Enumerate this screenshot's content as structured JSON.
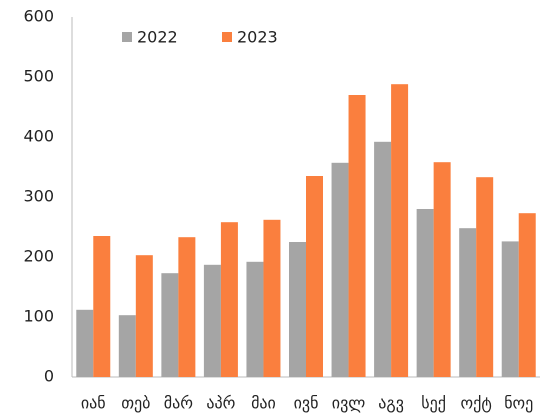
{
  "chart_data": {
    "type": "bar",
    "categories": [
      "იან",
      "თებ",
      "მარ",
      "აპრ",
      "მაი",
      "ივნ",
      "ივლ",
      "აგვ",
      "სექ",
      "ოქტ",
      "ნოე"
    ],
    "series": [
      {
        "name": "2022",
        "color": "#a5a5a5",
        "values": [
          112,
          103,
          173,
          187,
          192,
          225,
          357,
          392,
          280,
          248,
          226
        ]
      },
      {
        "name": "2023",
        "color": "#fa7f3e",
        "values": [
          235,
          203,
          233,
          258,
          262,
          335,
          470,
          488,
          358,
          333,
          273
        ]
      }
    ],
    "ylim": [
      0,
      600
    ],
    "yticks": [
      0,
      100,
      200,
      300,
      400,
      500,
      600
    ],
    "grid": false,
    "legend": "upper left"
  }
}
